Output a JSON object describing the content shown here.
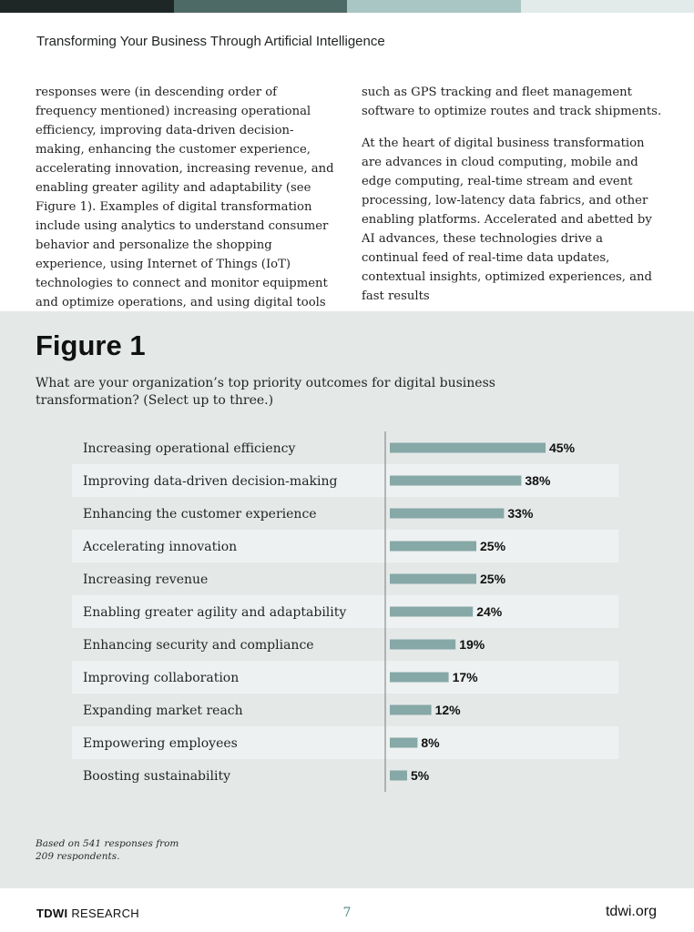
{
  "colors": {
    "bar": "#86a8a7",
    "stripe": "#eef1f1",
    "panel": "#e4e9e8",
    "topbar": [
      "#1f2626",
      "#4e6a67",
      "#aac6c4",
      "#e2ebea"
    ]
  },
  "header": {
    "title": "Transforming Your Business Through Artificial Intelligence"
  },
  "body": {
    "left_paragraphs": [
      "responses were (in descending order of frequency mentioned) increasing operational efficiency, improving data-driven decision-making, enhancing the customer experience, accelerating innovation, increasing revenue, and enabling greater agility and adaptability (see Figure 1). Examples of digital transformation include using analytics to understand consumer behavior and personalize the shopping experience, using Internet of Things (IoT) technologies to connect and monitor equipment and optimize operations, and using digital tools"
    ],
    "right_paragraphs": [
      "such as GPS tracking and fleet management software to optimize routes and track shipments.",
      "At the heart of digital business transformation are advances in cloud computing, mobile and edge computing, real-time stream and event processing, low-latency data fabrics, and other enabling platforms. Accelerated and abetted by AI advances, these technologies drive a continual feed of real-time data updates, contextual insights, optimized experiences, and fast results"
    ]
  },
  "figure": {
    "title": "Figure 1",
    "question": "What are your organization’s top priority outcomes for digital business transformation? (Select up to three.)",
    "footnote_line1": "Based on 541 responses from",
    "footnote_line2": "209 respondents."
  },
  "chart_data": {
    "type": "bar",
    "orientation": "horizontal",
    "title": "Figure 1",
    "categories": [
      "Increasing operational efficiency",
      "Improving data-driven decision-making",
      "Enhancing the customer experience",
      "Accelerating innovation",
      "Increasing revenue",
      "Enabling greater agility and adaptability",
      "Enhancing security and compliance",
      "Improving collaboration",
      "Expanding market reach",
      "Empowering employees",
      "Boosting sustainability"
    ],
    "values": [
      45,
      38,
      33,
      25,
      25,
      24,
      19,
      17,
      12,
      8,
      5
    ],
    "value_labels": [
      "45%",
      "38%",
      "33%",
      "25%",
      "25%",
      "24%",
      "19%",
      "17%",
      "12%",
      "8%",
      "5%"
    ],
    "unit": "%",
    "xlim": [
      0,
      100
    ],
    "xlabel": "",
    "ylabel": "",
    "grid": false
  },
  "footer": {
    "brand_bold": "TDWI",
    "brand_rest": " RESEARCH",
    "page": "7",
    "url": "tdwi.org"
  }
}
